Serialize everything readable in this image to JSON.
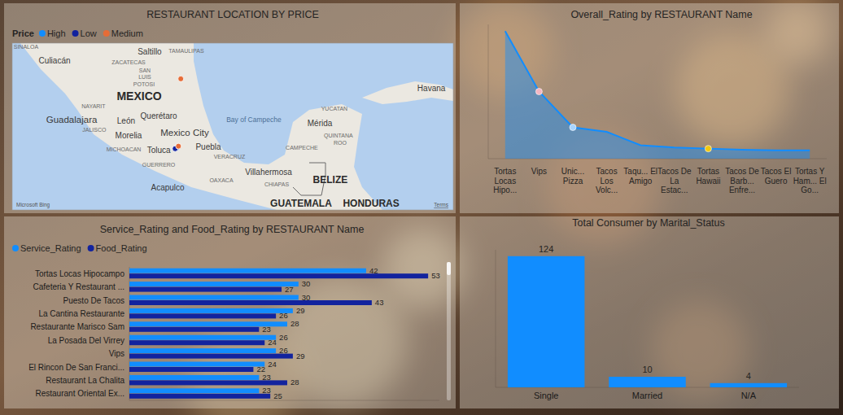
{
  "chart_data": [
    {
      "type": "map",
      "title": "RESTAURANT LOCATION BY PRICE",
      "legend_title": "Price",
      "legend": "top-left",
      "series": [
        {
          "name": "High",
          "color": "#118dff",
          "x": [
            -98.45
          ],
          "values": [
            19.3
          ]
        },
        {
          "name": "Low",
          "color": "#12239e",
          "x": [
            -98.58
          ],
          "values": [
            19.23
          ]
        },
        {
          "name": "Medium",
          "color": "#e66c37",
          "x": [
            -98.22,
            -98.37
          ],
          "values": [
            23.71,
            19.39
          ]
        }
      ],
      "xlim": [
        -109,
        -80.8
      ],
      "ylim": [
        15.3,
        26
      ],
      "tick_labels": false,
      "places": {
        "countries": [
          {
            "text": "MEXICO",
            "x": -100.88,
            "y": 22.61
          },
          {
            "text": "BELIZE",
            "x": -88.66,
            "y": 17.23
          },
          {
            "text": "GUATEMALA",
            "x": -90.53,
            "y": 15.72
          },
          {
            "text": "HONDURAS",
            "x": -86.05,
            "y": 15.72
          }
        ],
        "regions": [
          {
            "text": "SINALOA",
            "x": -108.12,
            "y": 25.74
          },
          {
            "text": "TAMAULIPAS",
            "x": -97.87,
            "y": 25.48
          },
          {
            "text": "ZACATECAS",
            "x": -101.56,
            "y": 24.75
          },
          {
            "text": "SAN",
            "x": -100.52,
            "y": 24.23
          },
          {
            "text": "LUIS",
            "x": -100.52,
            "y": 23.81
          },
          {
            "text": "POTOSI",
            "x": -100.57,
            "y": 23.34
          },
          {
            "text": "NAYARIT",
            "x": -103.8,
            "y": 21.98
          },
          {
            "text": "JALISCO",
            "x": -103.75,
            "y": 20.42
          },
          {
            "text": "MICHOACAN",
            "x": -101.87,
            "y": 19.21
          },
          {
            "text": "VERACRUZ",
            "x": -95.11,
            "y": 18.74
          },
          {
            "text": "GUERRERO",
            "x": -99.63,
            "y": 18.22
          },
          {
            "text": "OAXACA",
            "x": -95.63,
            "y": 17.18
          },
          {
            "text": "CHIAPAS",
            "x": -92.09,
            "y": 16.92
          },
          {
            "text": "YUCATAN",
            "x": -88.4,
            "y": 21.82
          },
          {
            "text": "QUINTANA",
            "x": -88.14,
            "y": 20.05
          },
          {
            "text": "ROO",
            "x": -88.03,
            "y": 19.63
          },
          {
            "text": "CAMPECHE",
            "x": -90.48,
            "y": 19.27
          }
        ],
        "cities": [
          {
            "text": "Culiacán",
            "x": -106.29,
            "y": 24.9
          },
          {
            "text": "Saltillo",
            "x": -100.21,
            "y": 25.43
          },
          {
            "text": "Havana",
            "x": -82.2,
            "y": 23.08
          },
          {
            "text": "Guadalajara",
            "x": -105.2,
            "y": 21.09
          },
          {
            "text": "León",
            "x": -101.72,
            "y": 21.04
          },
          {
            "text": "Querétaro",
            "x": -99.63,
            "y": 21.35
          },
          {
            "text": "Mérida",
            "x": -89.33,
            "y": 20.88
          },
          {
            "text": "Morelia",
            "x": -101.56,
            "y": 20.05
          },
          {
            "text": "Mexico City",
            "x": -97.97,
            "y": 20.26
          },
          {
            "text": "Toluca",
            "x": -99.63,
            "y": 19.16
          },
          {
            "text": "Puebla",
            "x": -96.46,
            "y": 19.37
          },
          {
            "text": "Villahermosa",
            "x": -92.61,
            "y": 17.75
          },
          {
            "text": "Acapulco",
            "x": -99.06,
            "y": 16.76
          }
        ],
        "water": [
          {
            "text": "Bay of Campeche",
            "x": -93.55,
            "y": 21.09
          }
        ]
      },
      "attribution": "Microsoft Bing",
      "terms": "Terms"
    },
    {
      "type": "line",
      "title": "Overall_Rating by RESTAURANT Name",
      "categories": [
        "Tortas Locas Hipo...",
        "Vips",
        "Unic... Pizza",
        "Tacos Los Volc...",
        "Taqu... El Amigo",
        "Tacos De La Estac...",
        "Tortas Hawaii",
        "Tacos De Barb... Enfre...",
        "Tacos El Guero",
        "Tortas Y Ham... El Go..."
      ],
      "values": [
        57,
        30,
        14,
        12,
        6,
        5,
        4.5,
        4,
        3.7,
        3.7
      ],
      "color": "#118dff",
      "colors": [
        "#118dff",
        "#f4b6c2",
        "#a8d4ff",
        "#118dff",
        "#118dff",
        "#118dff",
        "#f2c80f",
        "#118dff",
        "#118dff",
        "#118dff"
      ],
      "ylim": [
        0,
        60
      ],
      "tick_labels": "x"
    },
    {
      "type": "bar",
      "orientation": "horizontal",
      "title": "Service_Rating and Food_Rating by RESTAURANT Name",
      "categories": [
        "Tortas Locas Hipocampo",
        "Cafeteria Y Restaurant ...",
        "Puesto De Tacos",
        "La Cantina Restaurante",
        "Restaurante Marisco Sam",
        "La Posada Del Virrey",
        "Vips",
        "El Rincon De San Franci...",
        "Restaurant La Chalita",
        "Restaurant Oriental Ex..."
      ],
      "series": [
        {
          "name": "Service_Rating",
          "color": "#118dff",
          "values": [
            42,
            30,
            30,
            29,
            28,
            26,
            26,
            24,
            23,
            23
          ]
        },
        {
          "name": "Food_Rating",
          "color": "#12239e",
          "values": [
            53,
            27,
            43,
            26,
            23,
            24,
            29,
            22,
            28,
            25
          ]
        }
      ],
      "xlim": [
        0,
        55
      ],
      "data_labels": true,
      "tick_labels": "y",
      "legend": "top-left"
    },
    {
      "type": "bar",
      "title": "Total Consumer by Marital_Status",
      "categories": [
        "Single",
        "Married",
        "N/A"
      ],
      "values": [
        124,
        10,
        4
      ],
      "color": "#118dff",
      "ylim": [
        0,
        130
      ],
      "data_labels": true,
      "tick_labels": "x"
    }
  ]
}
